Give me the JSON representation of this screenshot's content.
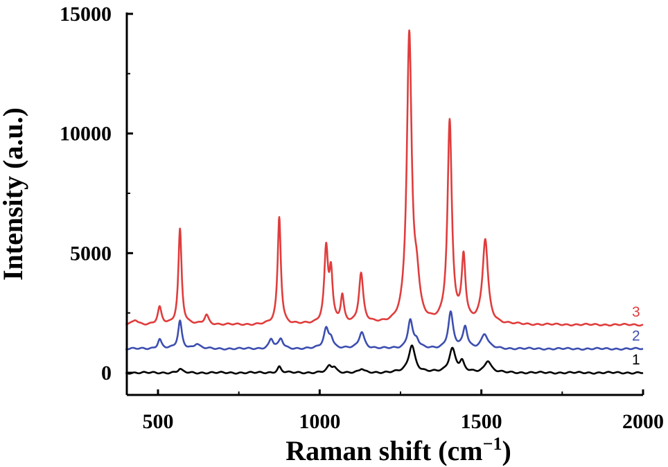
{
  "chart_data": {
    "type": "line",
    "xlabel": "Raman shift (cm",
    "xlabel_sup": "−1",
    "xlabel_close": ")",
    "ylabel": "Intensity (a.u.)",
    "xlim": [
      400,
      2000
    ],
    "ylim": [
      -800,
      15500
    ],
    "x_ticks": [
      500,
      1000,
      1500,
      2000
    ],
    "y_ticks": [
      0,
      5000,
      10000,
      15000
    ],
    "grid": false,
    "series": [
      {
        "name": "1",
        "color": "#000000",
        "baseline": 0,
        "peaks": [
          [
            568,
            150,
            8
          ],
          [
            875,
            250,
            7
          ],
          [
            1030,
            250,
            9
          ],
          [
            1045,
            200,
            8
          ],
          [
            1130,
            150,
            8
          ],
          [
            1285,
            1150,
            12
          ],
          [
            1410,
            1000,
            12
          ],
          [
            1440,
            400,
            8
          ],
          [
            1520,
            500,
            12
          ]
        ]
      },
      {
        "name": "2",
        "color": "#3c4eb0",
        "baseline": 1000,
        "peaks": [
          [
            505,
            400,
            7
          ],
          [
            568,
            1150,
            7
          ],
          [
            620,
            200,
            10
          ],
          [
            850,
            400,
            8
          ],
          [
            880,
            400,
            8
          ],
          [
            1020,
            800,
            9
          ],
          [
            1035,
            400,
            8
          ],
          [
            1130,
            700,
            10
          ],
          [
            1280,
            1200,
            9
          ],
          [
            1300,
            300,
            8
          ],
          [
            1405,
            1500,
            9
          ],
          [
            1450,
            900,
            8
          ],
          [
            1510,
            600,
            12
          ]
        ]
      },
      {
        "name": "3",
        "color": "#e03c3c",
        "baseline": 2000,
        "peaks": [
          [
            430,
            200,
            10
          ],
          [
            505,
            700,
            7
          ],
          [
            568,
            4000,
            6
          ],
          [
            650,
            400,
            8
          ],
          [
            875,
            4500,
            6
          ],
          [
            1020,
            3100,
            7
          ],
          [
            1035,
            2000,
            6
          ],
          [
            1070,
            1100,
            6
          ],
          [
            1128,
            2100,
            8
          ],
          [
            1277,
            12000,
            9
          ],
          [
            1300,
            1500,
            10
          ],
          [
            1402,
            8400,
            8
          ],
          [
            1445,
            2700,
            7
          ],
          [
            1512,
            3500,
            10
          ]
        ]
      }
    ]
  }
}
